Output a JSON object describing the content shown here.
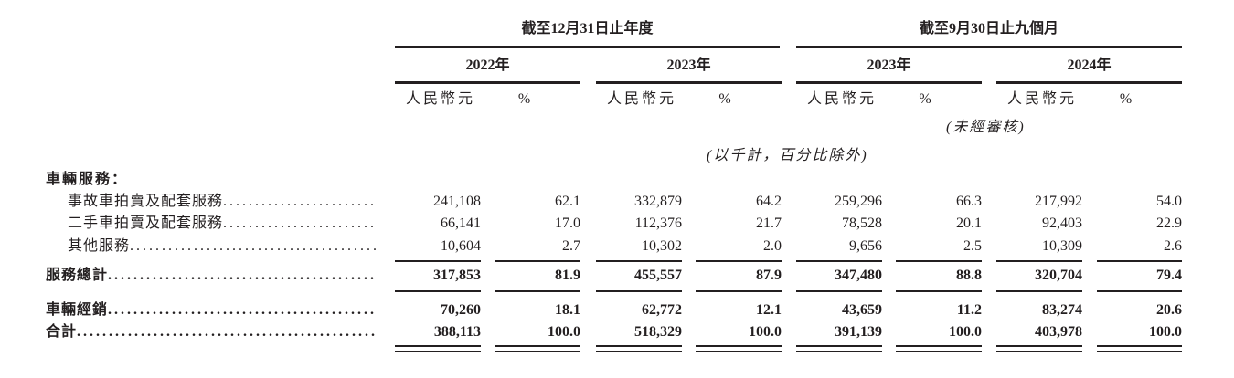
{
  "header": {
    "group1": "截至12月31日止年度",
    "group2": "截至9月30日止九個月",
    "years": [
      "2022年",
      "2023年",
      "2023年",
      "2024年"
    ],
    "currency": "人民幣元",
    "percent": "%",
    "unaudited": "(未經審核)",
    "unit_note": "(以千計，百分比除外)"
  },
  "section_title": "車輛服務：",
  "rows": [
    {
      "label": "事故車拍賣及配套服務",
      "indent": true,
      "bold": false,
      "values": [
        "241,108",
        "62.1",
        "332,879",
        "64.2",
        "259,296",
        "66.3",
        "217,992",
        "54.0"
      ]
    },
    {
      "label": "二手車拍賣及配套服務",
      "indent": true,
      "bold": false,
      "values": [
        "66,141",
        "17.0",
        "112,376",
        "21.7",
        "78,528",
        "20.1",
        "92,403",
        "22.9"
      ]
    },
    {
      "label": "其他服務",
      "indent": true,
      "bold": false,
      "values": [
        "10,604",
        "2.7",
        "10,302",
        "2.0",
        "9,656",
        "2.5",
        "10,309",
        "2.6"
      ]
    },
    {
      "label": "服務總計",
      "indent": false,
      "bold": true,
      "values": [
        "317,853",
        "81.9",
        "455,557",
        "87.9",
        "347,480",
        "88.8",
        "320,704",
        "79.4"
      ]
    },
    {
      "label": "車輛經銷",
      "indent": false,
      "bold": true,
      "values": [
        "70,260",
        "18.1",
        "62,772",
        "12.1",
        "43,659",
        "11.2",
        "83,274",
        "20.6"
      ]
    },
    {
      "label": "合計",
      "indent": false,
      "bold": true,
      "values": [
        "388,113",
        "100.0",
        "518,329",
        "100.0",
        "391,139",
        "100.0",
        "403,978",
        "100.0"
      ]
    }
  ]
}
